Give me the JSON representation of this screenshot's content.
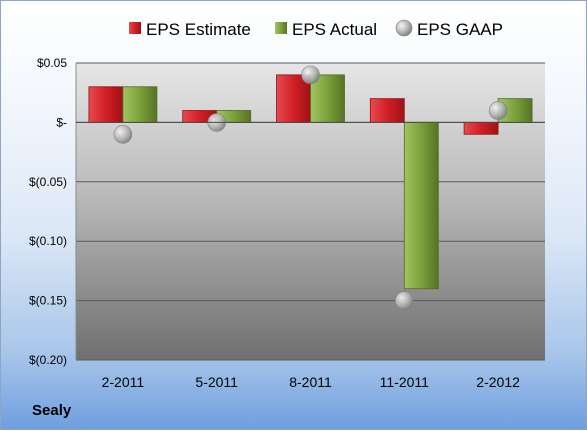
{
  "company": "Sealy",
  "colors": {
    "estimate": "#d11f26",
    "actual": "#7ba13a",
    "gaap": "#a9a9a9"
  },
  "chart_data": {
    "type": "bar",
    "categories": [
      "2-2011",
      "5-2011",
      "8-2011",
      "11-2011",
      "2-2012"
    ],
    "series": [
      {
        "name": "EPS Estimate",
        "kind": "bar",
        "values": [
          0.03,
          0.01,
          0.04,
          0.02,
          -0.01
        ]
      },
      {
        "name": "EPS Actual",
        "kind": "bar",
        "values": [
          0.03,
          0.01,
          0.04,
          -0.14,
          0.02
        ]
      },
      {
        "name": "EPS GAAP",
        "kind": "scatter",
        "values": [
          -0.01,
          0.0,
          0.04,
          -0.15,
          0.01
        ]
      }
    ],
    "ylim": [
      -0.2,
      0.05
    ],
    "yticks": [
      {
        "value": 0.05,
        "label": "$0.05"
      },
      {
        "value": 0.0,
        "label": "$-"
      },
      {
        "value": -0.05,
        "label": "$(0.05)"
      },
      {
        "value": -0.1,
        "label": "$(0.10)"
      },
      {
        "value": -0.15,
        "label": "$(0.15)"
      },
      {
        "value": -0.2,
        "label": "$(0.20)"
      }
    ],
    "grid": true,
    "legend_position": "top"
  }
}
